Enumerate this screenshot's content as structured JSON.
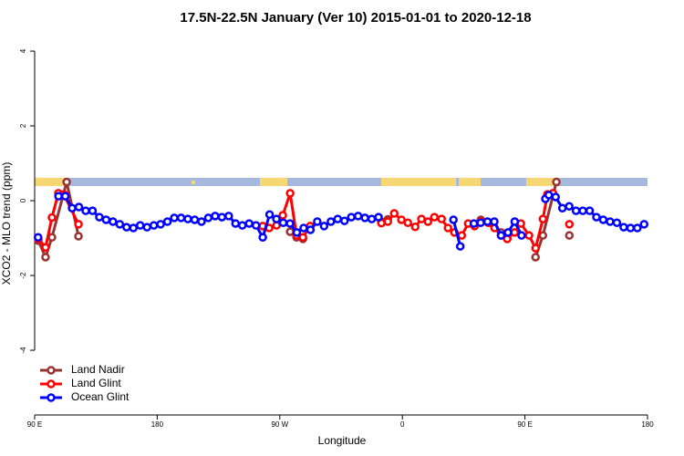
{
  "chart_data": {
    "type": "line",
    "title": "17.5N-22.5N January (Ver 10)   2015-01-01 to 2020-12-18",
    "x_label": "Longitude",
    "y_label": "XCO2 - MLO trend (ppm)",
    "xlim": [
      90,
      540
    ],
    "xticks": [
      {
        "value": 90,
        "label": "90 E"
      },
      {
        "value": 180,
        "label": "180"
      },
      {
        "value": 270,
        "label": "90 W"
      },
      {
        "value": 360,
        "label": "0"
      },
      {
        "value": 450,
        "label": "90 E"
      },
      {
        "value": 540,
        "label": "180"
      }
    ],
    "ylim": [
      -5.73,
      4.44
    ],
    "yticks": [
      -4,
      -2,
      0,
      2,
      4
    ],
    "grid": false,
    "legend": "bottom-left",
    "series": [
      {
        "name": "Land Nadir",
        "color": "#993333",
        "x": [
          92.7,
          98,
          102.7,
          113.5,
          122.2,
          null,
          277.6,
          282.3,
          287,
          null,
          344.6,
          349.3,
          null,
          417.6,
          432.4,
          437,
          null,
          457.8,
          463.2,
          473.1,
          null,
          482.6
        ],
        "values": [
          -1.07,
          -1.51,
          -0.98,
          0.5,
          -0.95,
          null,
          -0.83,
          -0.98,
          -1.02,
          null,
          -0.56,
          -0.5,
          null,
          -0.51,
          -0.85,
          -1.02,
          null,
          -1.51,
          -0.93,
          0.5,
          null,
          -0.93
        ]
      },
      {
        "name": "Land Glint",
        "color": "#ff0000",
        "x": [
          92.7,
          98,
          102.7,
          107.4,
          111.4,
          122.2,
          null,
          257.5,
          262.2,
          267.6,
          272.2,
          277.6,
          282.3,
          287,
          292.3,
          null,
          344.6,
          349.3,
          354,
          359.3,
          364,
          369.4,
          374,
          378.8,
          383.5,
          388.8,
          393.5,
          398.2,
          403.6,
          408.3,
          413,
          417.6,
          423,
          427.7,
          432.4,
          437,
          442.4,
          447,
          453,
          457.8,
          463.2,
          466.5,
          470.6,
          null,
          482.6
        ],
        "values": [
          -1.02,
          -1.25,
          -0.45,
          0.2,
          0.17,
          -0.63,
          null,
          -0.68,
          -0.73,
          -0.66,
          -0.39,
          0.2,
          -0.93,
          -0.98,
          -0.68,
          null,
          -0.6,
          -0.56,
          -0.34,
          -0.51,
          -0.59,
          -0.7,
          -0.49,
          -0.56,
          -0.44,
          -0.49,
          -0.73,
          -0.85,
          -0.93,
          -0.61,
          -0.68,
          -0.56,
          -0.59,
          -0.73,
          -0.93,
          -1.02,
          -0.85,
          -0.61,
          -0.93,
          -1.27,
          -0.49,
          0.17,
          0.2,
          null,
          -0.63
        ]
      },
      {
        "name": "Ocean Glint",
        "color": "#0000ff",
        "x": [
          92.5,
          null,
          107.5,
          112.5,
          117.5,
          122.5,
          127.5,
          132.5,
          137.5,
          142.5,
          147.5,
          152.5,
          157.5,
          162.5,
          167.5,
          172.5,
          177.5,
          182.5,
          187.5,
          192.5,
          197.5,
          202.5,
          207.5,
          212.5,
          217.5,
          222.5,
          227.5,
          232.5,
          237.5,
          242.5,
          247.5,
          252.5,
          257.5,
          262.5,
          267.5,
          272.5,
          277.5,
          282.5,
          287.5,
          292.5,
          297.5,
          302.5,
          307.5,
          312.5,
          317.5,
          322.5,
          327.5,
          332.5,
          337.5,
          342.5,
          null,
          397.5,
          402.5,
          null,
          412.5,
          417.5,
          422.5,
          427.5,
          432.5,
          437.5,
          442.5,
          447.5,
          null,
          465,
          467.5,
          472.5,
          477.5,
          482.5,
          487.5,
          492.5,
          497.5,
          502.5,
          507.5,
          512.5,
          517.5,
          522.5,
          527.5,
          532.5,
          537.5
        ],
        "values": [
          -0.98,
          null,
          0.12,
          0.12,
          -0.2,
          -0.17,
          -0.27,
          -0.27,
          -0.44,
          -0.51,
          -0.56,
          -0.63,
          -0.71,
          -0.73,
          -0.66,
          -0.71,
          -0.66,
          -0.63,
          -0.56,
          -0.46,
          -0.46,
          -0.49,
          -0.51,
          -0.56,
          -0.46,
          -0.41,
          -0.44,
          -0.41,
          -0.61,
          -0.66,
          -0.61,
          -0.66,
          -0.98,
          -0.37,
          -0.49,
          -0.59,
          -0.61,
          -0.85,
          -0.73,
          -0.78,
          -0.56,
          -0.68,
          -0.56,
          -0.49,
          -0.54,
          -0.44,
          -0.41,
          -0.46,
          -0.49,
          -0.44,
          null,
          -0.51,
          -1.22,
          null,
          -0.61,
          -0.59,
          -0.56,
          -0.56,
          -0.93,
          -0.85,
          -0.56,
          -0.93,
          null,
          0.05,
          0.15,
          0.1,
          -0.2,
          -0.15,
          -0.27,
          -0.27,
          -0.27,
          -0.44,
          -0.51,
          -0.56,
          -0.59,
          -0.71,
          -0.73,
          -0.73,
          -0.63
        ]
      }
    ]
  }
}
